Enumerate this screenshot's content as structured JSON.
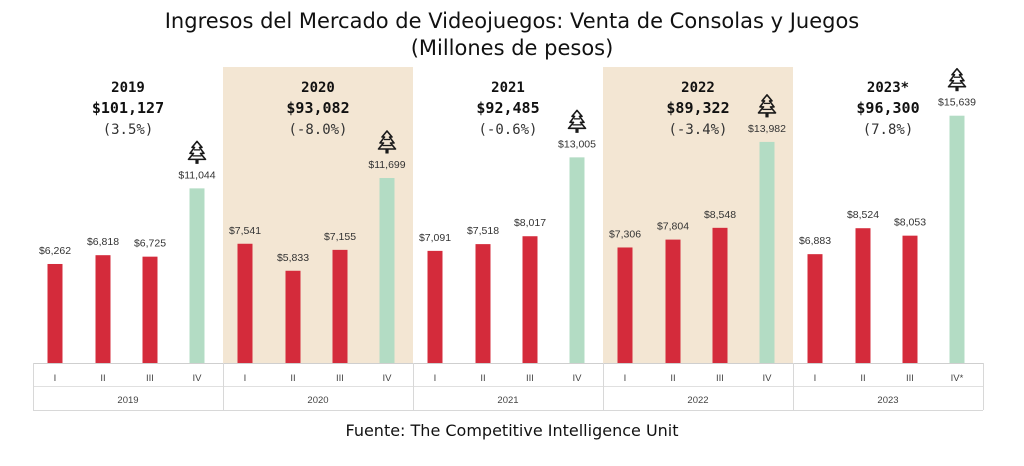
{
  "title_line1": "Ingresos del Mercado de Videojuegos: Venta de Consolas y Juegos",
  "title_line2": "(Millones de pesos)",
  "source": "Fuente: The Competitive Intelligence Unit",
  "chart_data": {
    "type": "bar",
    "title": "Ingresos del Mercado de Videojuegos: Venta de Consolas y Juegos (Millones de pesos)",
    "ylim": [
      0,
      16000
    ],
    "grid": false,
    "colors": {
      "regular": "#d42b3b",
      "q4": "#b3dcc4",
      "band": "#f3e6d3",
      "icon": "#1a1a1a"
    },
    "years": [
      {
        "label": "2019",
        "total": "$101,127",
        "change": "(3.5%)",
        "shaded": false,
        "quarters": [
          "I",
          "II",
          "III",
          "IV"
        ],
        "values": [
          6262,
          6818,
          6725,
          11044
        ],
        "value_labels": [
          "$6,262",
          "$6,818",
          "$6,725",
          "$11,044"
        ]
      },
      {
        "label": "2020",
        "total": "$93,082",
        "change": "(-8.0%)",
        "shaded": true,
        "quarters": [
          "I",
          "II",
          "III",
          "IV"
        ],
        "values": [
          7541,
          5833,
          7155,
          11699
        ],
        "value_labels": [
          "$7,541",
          "$5,833",
          "$7,155",
          "$11,699"
        ]
      },
      {
        "label": "2021",
        "total": "$92,485",
        "change": "(-0.6%)",
        "shaded": false,
        "quarters": [
          "I",
          "II",
          "III",
          "IV"
        ],
        "values": [
          7091,
          7518,
          8017,
          13005
        ],
        "value_labels": [
          "$7,091",
          "$7,518",
          "$8,017",
          "$13,005"
        ]
      },
      {
        "label": "2022",
        "total": "$89,322",
        "change": "(-3.4%)",
        "shaded": true,
        "quarters": [
          "I",
          "II",
          "III",
          "IV"
        ],
        "values": [
          7306,
          7804,
          8548,
          13982
        ],
        "value_labels": [
          "$7,306",
          "$7,804",
          "$8,548",
          "$13,982"
        ]
      },
      {
        "label": "2023",
        "header": "2023*",
        "total": "$96,300",
        "change": "(7.8%)",
        "shaded": false,
        "quarters": [
          "I",
          "II",
          "III",
          "IV*"
        ],
        "values": [
          6883,
          8524,
          8053,
          15639
        ],
        "value_labels": [
          "$6,883",
          "$8,524",
          "$8,053",
          "$15,639"
        ]
      }
    ]
  }
}
